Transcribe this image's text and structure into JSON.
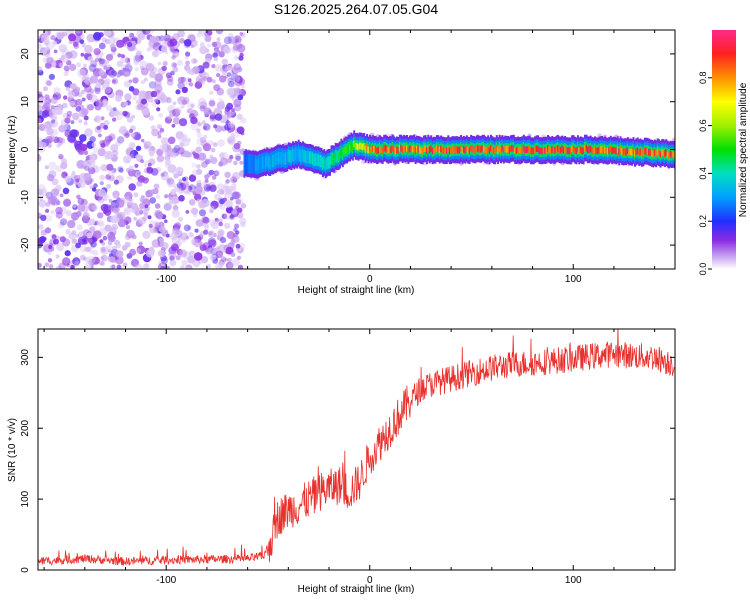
{
  "figure_title": "S126.2025.264.07.05.G04",
  "colors": {
    "snr_line": "#e8302c",
    "heat_low": "#9b4dff",
    "background": "#ffffff"
  },
  "chart_data": [
    {
      "type": "heatmap",
      "title": "S126.2025.264.07.05.G04",
      "xlabel": "Height of straight line (km)",
      "ylabel": "Frequency (Hz)",
      "xlim": [
        -163,
        150
      ],
      "ylim": [
        -25,
        25
      ],
      "xticks": [
        -100,
        0,
        100
      ],
      "yticks": [
        -20,
        -10,
        0,
        10,
        20
      ],
      "colorbar": {
        "label": "Normalized spectral amplitude",
        "range": [
          0,
          1
        ],
        "ticks": [
          0.0,
          0.2,
          0.4,
          0.6,
          0.8
        ]
      },
      "noise_region_end_km": -62,
      "tone_trace": {
        "x": [
          -62,
          -55,
          -45,
          -35,
          -28,
          -22,
          -15,
          -8,
          0,
          20,
          50,
          80,
          110,
          150
        ],
        "freq": [
          -3,
          -3,
          -2,
          -1,
          -2,
          -3,
          -1,
          1,
          0,
          0,
          0,
          0,
          0,
          -1
        ],
        "amplitude": [
          0.25,
          0.3,
          0.35,
          0.35,
          0.4,
          0.4,
          0.5,
          0.6,
          0.85,
          0.9,
          0.9,
          0.92,
          0.9,
          0.88
        ]
      }
    },
    {
      "type": "line",
      "xlabel": "Height of straight line (km)",
      "ylabel": "SNR (10 * v/v)",
      "xlim": [
        -163,
        150
      ],
      "ylim": [
        0,
        340
      ],
      "xticks": [
        -100,
        0,
        100
      ],
      "yticks": [
        0,
        100,
        200,
        300
      ],
      "series": [
        {
          "name": "SNR",
          "x": [
            -163,
            -140,
            -120,
            -100,
            -80,
            -60,
            -52,
            -48,
            -45,
            -40,
            -35,
            -30,
            -25,
            -20,
            -15,
            -10,
            -5,
            0,
            5,
            10,
            15,
            20,
            25,
            30,
            40,
            50,
            60,
            70,
            80,
            90,
            100,
            110,
            120,
            130,
            140,
            150
          ],
          "y": [
            12,
            16,
            12,
            14,
            15,
            16,
            20,
            45,
            75,
            85,
            90,
            100,
            110,
            115,
            120,
            110,
            125,
            160,
            180,
            200,
            220,
            240,
            255,
            262,
            270,
            278,
            285,
            290,
            292,
            295,
            298,
            302,
            305,
            302,
            300,
            290
          ]
        }
      ]
    }
  ]
}
